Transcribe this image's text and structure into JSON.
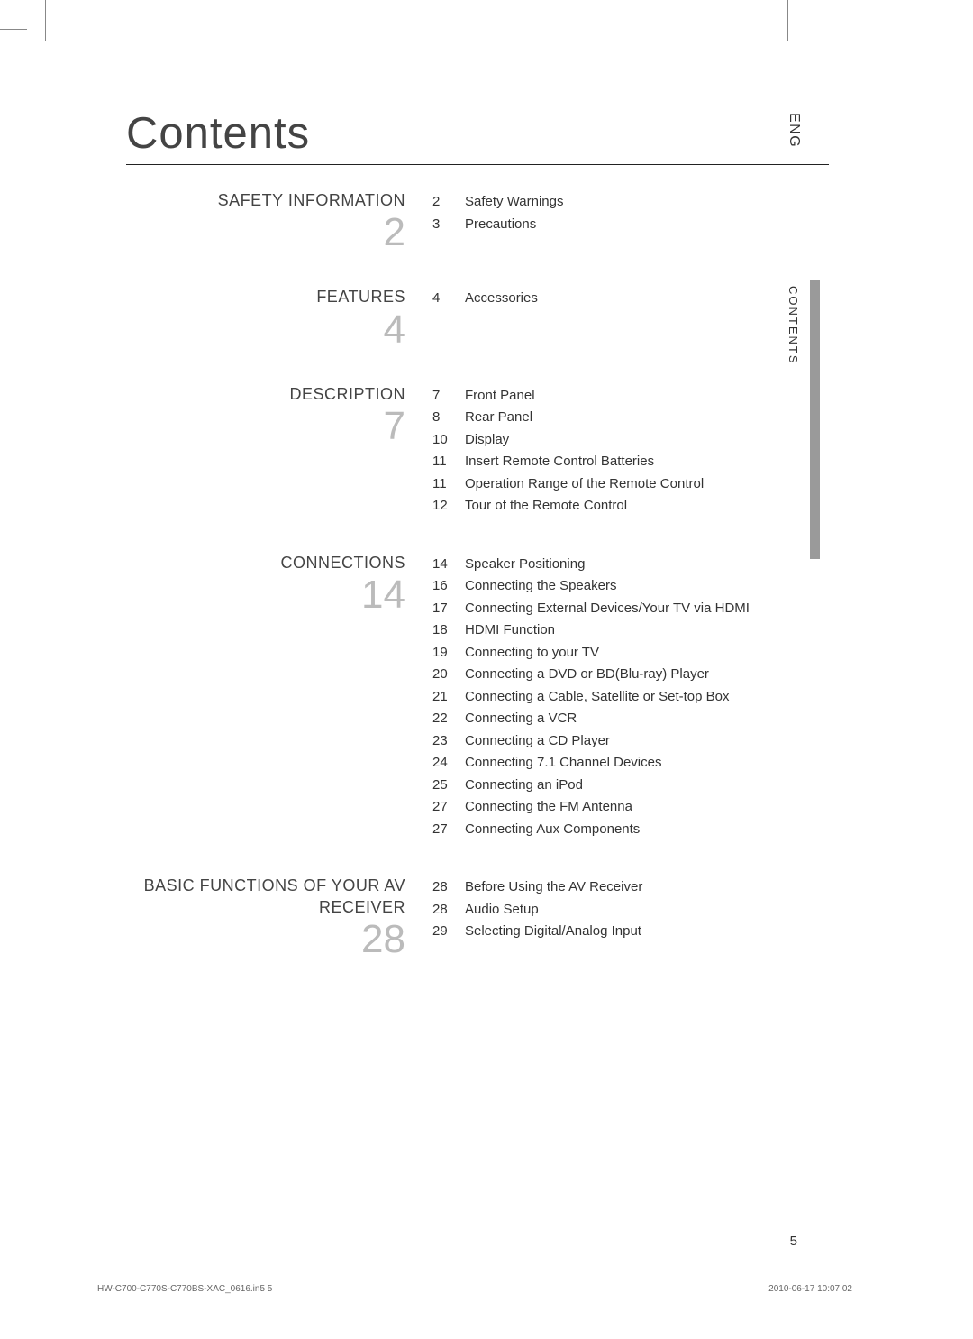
{
  "title": "Contents",
  "lang_tab": "ENG",
  "side_label": "CONTENTS",
  "page_number": "5",
  "footer_left": "HW-C700-C770S-C770BS-XAC_0616.in5   5",
  "footer_right": "2010-06-17     10:07:02",
  "sections": [
    {
      "title": "SAFETY INFORMATION",
      "number": "2",
      "entries": [
        {
          "page": "2",
          "label": "Safety Warnings"
        },
        {
          "page": "3",
          "label": "Precautions"
        }
      ]
    },
    {
      "title": "FEATURES",
      "number": "4",
      "entries": [
        {
          "page": "4",
          "label": "Accessories"
        }
      ]
    },
    {
      "title": "DESCRIPTION",
      "number": "7",
      "entries": [
        {
          "page": "7",
          "label": "Front Panel"
        },
        {
          "page": "8",
          "label": "Rear Panel"
        },
        {
          "page": "10",
          "label": "Display"
        },
        {
          "page": "11",
          "label": "Insert Remote Control Batteries"
        },
        {
          "page": "11",
          "label": "Operation Range of the Remote Control"
        },
        {
          "page": "12",
          "label": "Tour of the Remote Control"
        }
      ]
    },
    {
      "title": "CONNECTIONS",
      "number": "14",
      "entries": [
        {
          "page": "14",
          "label": "Speaker Positioning"
        },
        {
          "page": "16",
          "label": "Connecting the Speakers"
        },
        {
          "page": "17",
          "label": "Connecting External Devices/Your TV via HDMI"
        },
        {
          "page": "18",
          "label": "HDMI Function"
        },
        {
          "page": "19",
          "label": "Connecting to your TV"
        },
        {
          "page": "20",
          "label": "Connecting a DVD or BD(Blu-ray) Player"
        },
        {
          "page": "21",
          "label": "Connecting a Cable, Satellite or Set-top Box"
        },
        {
          "page": "22",
          "label": "Connecting a VCR"
        },
        {
          "page": "23",
          "label": "Connecting a CD Player"
        },
        {
          "page": "24",
          "label": "Connecting 7.1 Channel Devices"
        },
        {
          "page": "25",
          "label": "Connecting an iPod"
        },
        {
          "page": "27",
          "label": "Connecting the FM Antenna"
        },
        {
          "page": "27",
          "label": "Connecting Aux Components"
        }
      ]
    },
    {
      "title": "BASIC FUNCTIONS OF YOUR AV RECEIVER",
      "number": "28",
      "entries": [
        {
          "page": "28",
          "label": "Before Using the AV Receiver"
        },
        {
          "page": "28",
          "label": "Audio Setup"
        },
        {
          "page": "29",
          "label": "Selecting Digital/Analog Input"
        }
      ]
    }
  ]
}
